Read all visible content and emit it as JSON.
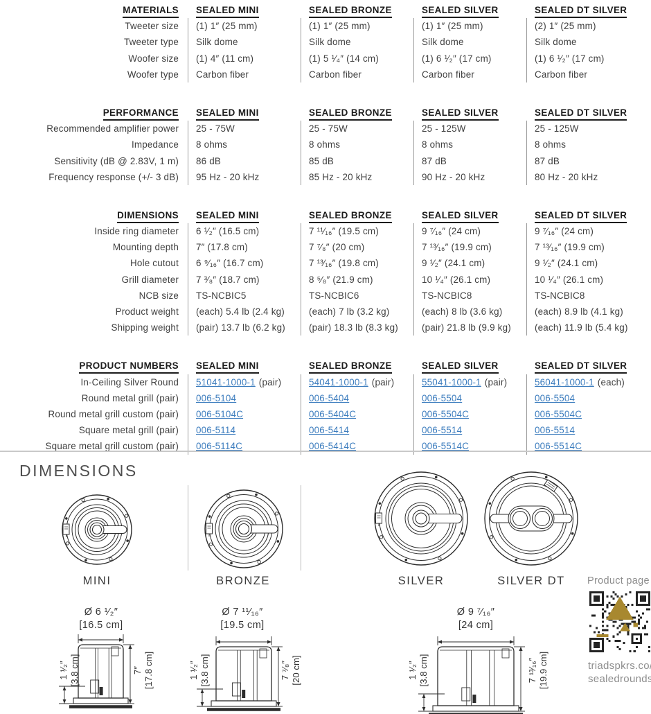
{
  "colors": {
    "link_blue": "#3d7dbe",
    "qr_gold": "#a8882f",
    "body_text": "#3f3f3f",
    "header_text": "#1c1c1c"
  },
  "tables": [
    {
      "title": "MATERIALS",
      "columns": [
        "SEALED MINI",
        "SEALED BRONZE",
        "SEALED SILVER",
        "SEALED DT SILVER"
      ],
      "rows": [
        {
          "label": "Tweeter size",
          "values": [
            "(1) 1″ (25 mm)",
            "(1) 1″ (25 mm)",
            "(1) 1″ (25 mm)",
            "(2) 1″ (25 mm)"
          ]
        },
        {
          "label": "Tweeter type",
          "values": [
            "Silk dome",
            "Silk dome",
            "Silk dome",
            "Silk dome"
          ]
        },
        {
          "label": "Woofer size",
          "values": [
            "(1) 4″ (11 cm)",
            "(1) 5 ¹⁄₄″ (14 cm)",
            "(1) 6 ¹⁄₂″ (17 cm)",
            "(1) 6 ¹⁄₂″ (17 cm)"
          ]
        },
        {
          "label": "Woofer type",
          "values": [
            "Carbon fiber",
            "Carbon fiber",
            "Carbon fiber",
            "Carbon fiber"
          ]
        }
      ]
    },
    {
      "title": "PERFORMANCE",
      "columns": [
        "SEALED MINI",
        "SEALED BRONZE",
        "SEALED SILVER",
        "SEALED DT SILVER"
      ],
      "rows": [
        {
          "label": "Recommended amplifier power",
          "values": [
            "25 - 75W",
            "25 - 75W",
            "25 - 125W",
            "25 - 125W"
          ]
        },
        {
          "label": "Impedance",
          "values": [
            "8 ohms",
            "8 ohms",
            "8 ohms",
            "8 ohms"
          ]
        },
        {
          "label": "Sensitivity (dB @ 2.83V, 1 m)",
          "values": [
            "86 dB",
            "85 dB",
            "87 dB",
            "87 dB"
          ]
        },
        {
          "label": "Frequency response (+/- 3 dB)",
          "values": [
            "95 Hz - 20 kHz",
            "85 Hz - 20 kHz",
            "90 Hz - 20 kHz",
            "80 Hz - 20 kHz"
          ]
        }
      ]
    },
    {
      "title": "DIMENSIONS",
      "columns": [
        "SEALED MINI",
        "SEALED BRONZE",
        "SEALED SILVER",
        "SEALED DT SILVER"
      ],
      "rows": [
        {
          "label": "Inside ring diameter",
          "values": [
            "6 ¹⁄₂″ (16.5 cm)",
            "7 ¹¹⁄₁₆″ (19.5 cm)",
            "9 ⁷⁄₁₆″ (24 cm)",
            "9 ⁷⁄₁₆″ (24 cm)"
          ]
        },
        {
          "label": "Mounting depth",
          "values": [
            "7″ (17.8 cm)",
            "7 ⁷⁄₈″ (20 cm)",
            "7 ¹³⁄₁₆″ (19.9 cm)",
            "7 ¹³⁄₁₆″ (19.9 cm)"
          ]
        },
        {
          "label": "Hole cutout",
          "values": [
            "6 ⁹⁄₁₆″ (16.7 cm)",
            "7 ¹³⁄₁₆″ (19.8 cm)",
            "9 ¹⁄₂″ (24.1 cm)",
            "9 ¹⁄₂″ (24.1 cm)"
          ]
        },
        {
          "label": "Grill diameter",
          "values": [
            "7 ³⁄₈″ (18.7 cm)",
            "8 ⁵⁄₈″ (21.9 cm)",
            "10 ¹⁄₄″ (26.1 cm)",
            "10 ¹⁄₄″ (26.1 cm)"
          ]
        },
        {
          "label": "NCB size",
          "values": [
            "TS-NCBIC5",
            "TS-NCBIC6",
            "TS-NCBIC8",
            "TS-NCBIC8"
          ]
        },
        {
          "label": "Product weight",
          "values": [
            "(each) 5.4 lb (2.4 kg)",
            "(each) 7 lb (3.2 kg)",
            "(each) 8 lb (3.6 kg)",
            "(each) 8.9 lb (4.1 kg)"
          ]
        },
        {
          "label": "Shipping weight",
          "values": [
            "(pair) 13.7 lb (6.2 kg)",
            "(pair) 18.3 lb (8.3 kg)",
            "(pair) 21.8 lb (9.9 kg)",
            "(each) 11.9 lb (5.4 kg)"
          ]
        }
      ]
    },
    {
      "title": "PRODUCT NUMBERS",
      "columns": [
        "SEALED MINI",
        "SEALED BRONZE",
        "SEALED SILVER",
        "SEALED DT SILVER"
      ],
      "rows": [
        {
          "label": "In-Ceiling Silver Round",
          "links": [
            "51041-1000-1",
            "54041-1000-1",
            "55041-1000-1",
            "56041-1000-1"
          ],
          "suffixes": [
            "(pair)",
            "(pair)",
            "(pair)",
            "(each)"
          ]
        },
        {
          "label": "Round metal grill (pair)",
          "links": [
            "006-5104",
            "006-5404",
            "006-5504",
            "006-5504"
          ]
        },
        {
          "label": "Round metal grill custom (pair)",
          "links": [
            "006-5104C",
            "006-5404C",
            "006-5504C",
            "006-5504C"
          ]
        },
        {
          "label": "Square metal grill (pair)",
          "links": [
            "006-5114",
            "006-5414",
            "006-5514",
            "006-5514"
          ]
        },
        {
          "label": "Square metal grill custom (pair)",
          "links": [
            "006-5114C",
            "006-5414C",
            "006-5514C",
            "006-5514C"
          ]
        }
      ]
    }
  ],
  "dimensions_section": {
    "heading": "DIMENSIONS",
    "top_view_labels": [
      "MINI",
      "BRONZE",
      "SILVER",
      "SILVER DT"
    ],
    "side_views": [
      {
        "model": "MINI",
        "dia_in": "Ø 6 ¹⁄₂″",
        "dia_cm": "[16.5 cm]",
        "flange_in": "1 ¹⁄₂″",
        "flange_cm": "[3.8 cm]",
        "depth_in": "7″",
        "depth_cm": "[17.8 cm]"
      },
      {
        "model": "BRONZE",
        "dia_in": "Ø 7 ¹¹⁄₁₆″",
        "dia_cm": "[19.5 cm]",
        "flange_in": "1 ¹⁄₂″",
        "flange_cm": "[3.8 cm]",
        "depth_in": "7 ⁷⁄₈″",
        "depth_cm": "[20 cm]"
      },
      {
        "model": "SILVER",
        "dia_in": "Ø 9 ⁷⁄₁₆″",
        "dia_cm": "[24 cm]",
        "flange_in": "1 ¹⁄₂″",
        "flange_cm": "[3.8 cm]",
        "depth_in": "7 ¹³⁄₁₆″",
        "depth_cm": "[19.9 cm]"
      }
    ],
    "qr_block": {
      "label": "Product page",
      "url_line1": "triadspkrs.co/",
      "url_line2": "sealedrounds"
    }
  }
}
